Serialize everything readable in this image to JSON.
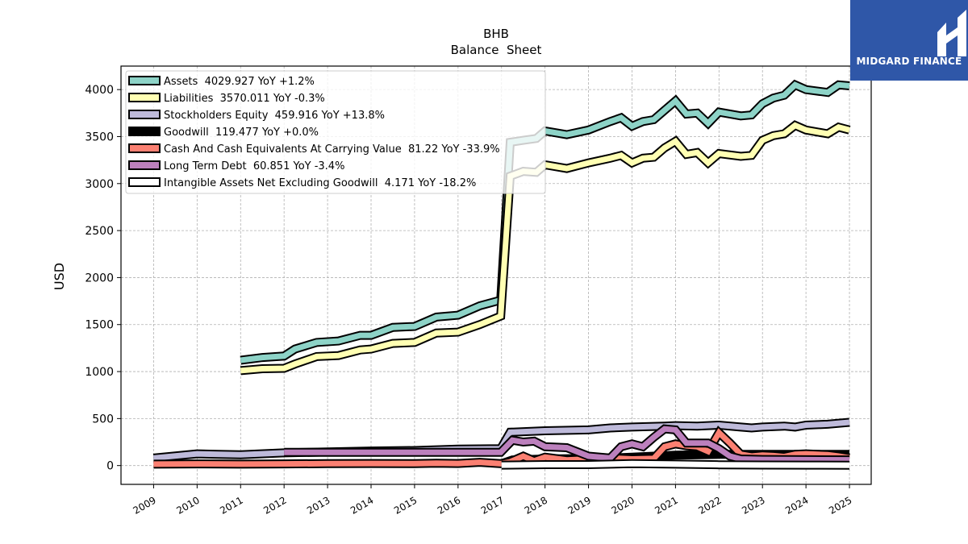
{
  "brand": {
    "name": "MIDGARD FINANCE",
    "bg_color": "#2f57a8"
  },
  "chart_data": {
    "type": "line",
    "title": "BHB",
    "subtitle": "Balance  Sheet",
    "xlabel": "",
    "ylabel": "USD",
    "xlim": [
      2008.25,
      2025.5
    ],
    "ylim": [
      -200,
      4250
    ],
    "x_ticks": [
      2009,
      2010,
      2011,
      2012,
      2013,
      2014,
      2015,
      2016,
      2017,
      2018,
      2019,
      2020,
      2021,
      2022,
      2023,
      2024,
      2025
    ],
    "y_ticks": [
      0,
      500,
      1000,
      1500,
      2000,
      2500,
      3000,
      3500,
      4000
    ],
    "grid": true,
    "legend_position": "top-left",
    "series": [
      {
        "name": "Assets  4029.927 YoY +1.2%",
        "color": "#8dd3c7",
        "points": [
          [
            2011.0,
            1120
          ],
          [
            2011.5,
            1150
          ],
          [
            2012.0,
            1165
          ],
          [
            2012.25,
            1240
          ],
          [
            2012.75,
            1310
          ],
          [
            2013.25,
            1325
          ],
          [
            2013.75,
            1385
          ],
          [
            2014.0,
            1385
          ],
          [
            2014.5,
            1470
          ],
          [
            2015.0,
            1480
          ],
          [
            2015.5,
            1580
          ],
          [
            2016.0,
            1600
          ],
          [
            2016.5,
            1700
          ],
          [
            2016.98,
            1760
          ],
          [
            2017.2,
            3440
          ],
          [
            2017.5,
            3460
          ],
          [
            2017.8,
            3480
          ],
          [
            2018.0,
            3560
          ],
          [
            2018.5,
            3520
          ],
          [
            2019.0,
            3570
          ],
          [
            2019.5,
            3660
          ],
          [
            2019.75,
            3700
          ],
          [
            2020.0,
            3610
          ],
          [
            2020.25,
            3660
          ],
          [
            2020.5,
            3680
          ],
          [
            2020.75,
            3780
          ],
          [
            2021.0,
            3880
          ],
          [
            2021.25,
            3740
          ],
          [
            2021.5,
            3750
          ],
          [
            2021.75,
            3640
          ],
          [
            2022.0,
            3760
          ],
          [
            2022.5,
            3720
          ],
          [
            2022.75,
            3730
          ],
          [
            2023.0,
            3850
          ],
          [
            2023.25,
            3910
          ],
          [
            2023.5,
            3940
          ],
          [
            2023.75,
            4050
          ],
          [
            2024.0,
            4000
          ],
          [
            2024.5,
            3970
          ],
          [
            2024.75,
            4050
          ],
          [
            2025.0,
            4040
          ]
        ]
      },
      {
        "name": "Liabilities  3570.011 YoY -0.3%",
        "color": "#ffffb3",
        "points": [
          [
            2011.0,
            1010
          ],
          [
            2011.5,
            1030
          ],
          [
            2012.0,
            1035
          ],
          [
            2012.25,
            1080
          ],
          [
            2012.75,
            1160
          ],
          [
            2013.25,
            1170
          ],
          [
            2013.75,
            1230
          ],
          [
            2014.0,
            1240
          ],
          [
            2014.5,
            1300
          ],
          [
            2015.0,
            1310
          ],
          [
            2015.5,
            1410
          ],
          [
            2016.0,
            1420
          ],
          [
            2016.5,
            1500
          ],
          [
            2016.98,
            1590
          ],
          [
            2017.2,
            3080
          ],
          [
            2017.5,
            3130
          ],
          [
            2017.8,
            3120
          ],
          [
            2018.0,
            3200
          ],
          [
            2018.5,
            3160
          ],
          [
            2019.0,
            3220
          ],
          [
            2019.5,
            3270
          ],
          [
            2019.75,
            3300
          ],
          [
            2020.0,
            3220
          ],
          [
            2020.25,
            3270
          ],
          [
            2020.5,
            3280
          ],
          [
            2020.75,
            3380
          ],
          [
            2021.0,
            3450
          ],
          [
            2021.25,
            3310
          ],
          [
            2021.5,
            3330
          ],
          [
            2021.75,
            3220
          ],
          [
            2022.0,
            3320
          ],
          [
            2022.5,
            3290
          ],
          [
            2022.75,
            3300
          ],
          [
            2023.0,
            3460
          ],
          [
            2023.25,
            3510
          ],
          [
            2023.5,
            3530
          ],
          [
            2023.75,
            3620
          ],
          [
            2024.0,
            3570
          ],
          [
            2024.5,
            3530
          ],
          [
            2024.75,
            3600
          ],
          [
            2025.0,
            3570
          ]
        ]
      },
      {
        "name": "Stockholders Equity  459.916 YoY +13.8%",
        "color": "#bebada",
        "points": [
          [
            2009.0,
            80
          ],
          [
            2010.0,
            125
          ],
          [
            2010.5,
            120
          ],
          [
            2011.0,
            115
          ],
          [
            2012.0,
            135
          ],
          [
            2013.0,
            145
          ],
          [
            2014.0,
            155
          ],
          [
            2015.0,
            160
          ],
          [
            2016.0,
            175
          ],
          [
            2016.98,
            180
          ],
          [
            2017.2,
            355
          ],
          [
            2018.0,
            370
          ],
          [
            2019.0,
            380
          ],
          [
            2019.5,
            400
          ],
          [
            2020.0,
            410
          ],
          [
            2020.75,
            420
          ],
          [
            2021.0,
            425
          ],
          [
            2021.5,
            420
          ],
          [
            2022.0,
            430
          ],
          [
            2022.5,
            410
          ],
          [
            2022.75,
            400
          ],
          [
            2023.0,
            410
          ],
          [
            2023.5,
            420
          ],
          [
            2023.75,
            410
          ],
          [
            2024.0,
            430
          ],
          [
            2024.5,
            440
          ],
          [
            2025.0,
            460
          ]
        ]
      },
      {
        "name": "Goodwill  119.477 YoY +0.0%",
        "color": "#000000",
        "points": [
          [
            2017.0,
            20
          ],
          [
            2017.25,
            60
          ],
          [
            2018.0,
            70
          ],
          [
            2019.0,
            75
          ],
          [
            2019.5,
            80
          ],
          [
            2020.0,
            90
          ],
          [
            2021.0,
            110
          ],
          [
            2022.0,
            119
          ],
          [
            2025.0,
            119
          ]
        ]
      },
      {
        "name": "Cash And Cash Equivalents At Carrying Value  81.22 YoY -33.9%",
        "color": "#fb8072",
        "points": [
          [
            2009.0,
            15
          ],
          [
            2010.0,
            18
          ],
          [
            2011.0,
            15
          ],
          [
            2012.0,
            18
          ],
          [
            2013.0,
            20
          ],
          [
            2014.0,
            22
          ],
          [
            2015.0,
            20
          ],
          [
            2015.5,
            25
          ],
          [
            2016.0,
            22
          ],
          [
            2016.5,
            35
          ],
          [
            2016.98,
            20
          ],
          [
            2017.2,
            40
          ],
          [
            2017.5,
            100
          ],
          [
            2017.75,
            50
          ],
          [
            2018.0,
            90
          ],
          [
            2018.5,
            60
          ],
          [
            2019.0,
            70
          ],
          [
            2019.5,
            80
          ],
          [
            2020.0,
            70
          ],
          [
            2020.5,
            75
          ],
          [
            2020.75,
            200
          ],
          [
            2021.0,
            230
          ],
          [
            2021.25,
            210
          ],
          [
            2021.5,
            200
          ],
          [
            2021.75,
            150
          ],
          [
            2022.0,
            350
          ],
          [
            2022.25,
            240
          ],
          [
            2022.5,
            120
          ],
          [
            2022.75,
            100
          ],
          [
            2023.0,
            110
          ],
          [
            2023.25,
            105
          ],
          [
            2023.5,
            95
          ],
          [
            2023.75,
            120
          ],
          [
            2024.0,
            125
          ],
          [
            2024.5,
            115
          ],
          [
            2024.75,
            100
          ],
          [
            2025.0,
            81
          ]
        ]
      },
      {
        "name": "Long Term Debt  60.851 YoY -3.4%",
        "color": "#bc80bd",
        "points": [
          [
            2012.0,
            140
          ],
          [
            2016.98,
            140
          ],
          [
            2017.25,
            270
          ],
          [
            2017.5,
            250
          ],
          [
            2017.75,
            260
          ],
          [
            2018.0,
            200
          ],
          [
            2018.5,
            190
          ],
          [
            2019.0,
            100
          ],
          [
            2019.5,
            80
          ],
          [
            2019.75,
            200
          ],
          [
            2020.0,
            230
          ],
          [
            2020.25,
            200
          ],
          [
            2020.5,
            300
          ],
          [
            2020.75,
            390
          ],
          [
            2021.0,
            380
          ],
          [
            2021.25,
            240
          ],
          [
            2021.75,
            240
          ],
          [
            2022.0,
            180
          ],
          [
            2022.25,
            100
          ],
          [
            2022.5,
            70
          ],
          [
            2023.0,
            65
          ],
          [
            2024.0,
            62
          ],
          [
            2025.0,
            61
          ]
        ]
      },
      {
        "name": "Intangible Assets Net Excluding Goodwill  4.171 YoY -18.2%",
        "color": "#ffffff",
        "points": [
          [
            2017.0,
            5
          ],
          [
            2018.0,
            10
          ],
          [
            2019.0,
            10
          ],
          [
            2020.0,
            20
          ],
          [
            2021.0,
            15
          ],
          [
            2022.0,
            8
          ],
          [
            2023.0,
            6
          ],
          [
            2024.0,
            5
          ],
          [
            2025.0,
            4
          ]
        ]
      }
    ]
  }
}
